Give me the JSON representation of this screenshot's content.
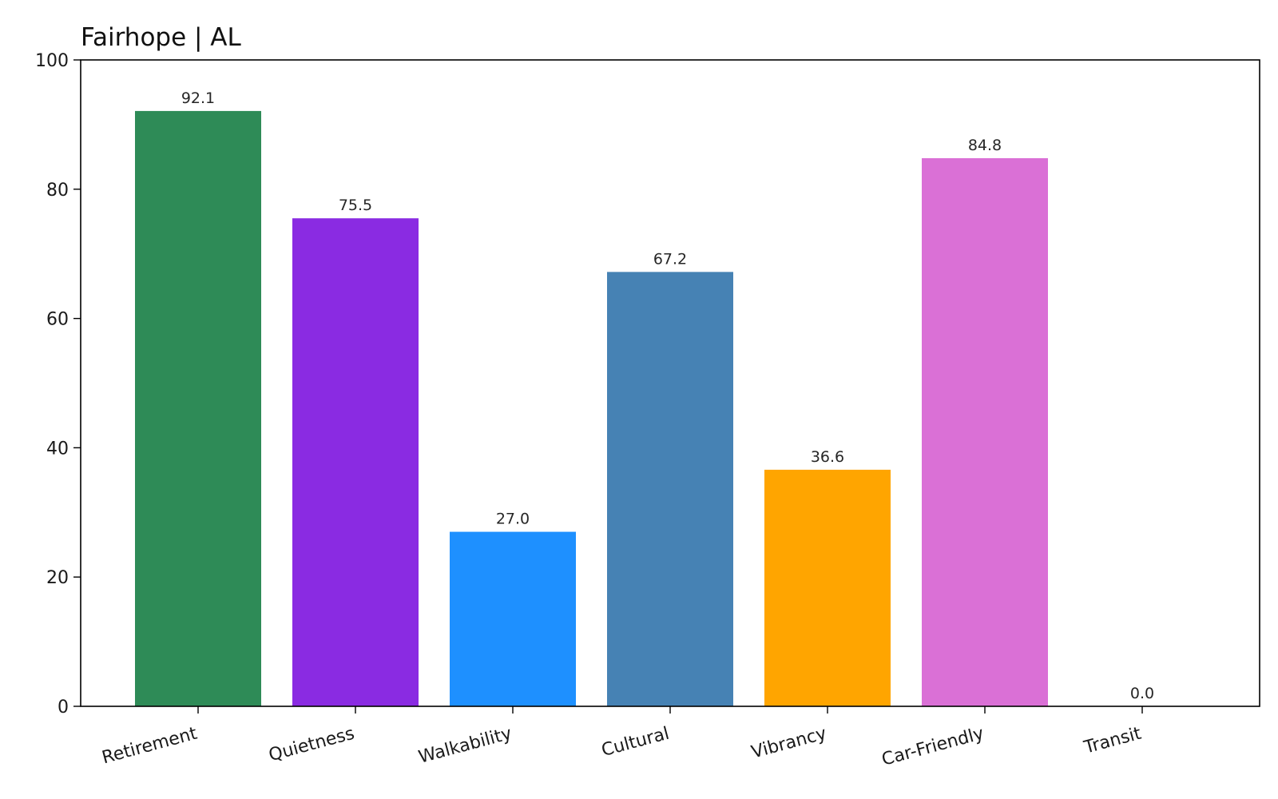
{
  "chart_data": {
    "type": "bar",
    "title": "Fairhope | AL",
    "xlabel": "",
    "ylabel": "",
    "categories": [
      "Retirement",
      "Quietness",
      "Walkability",
      "Cultural",
      "Vibrancy",
      "Car-Friendly",
      "Transit"
    ],
    "values": [
      92.1,
      75.5,
      27.0,
      67.2,
      36.6,
      84.8,
      0.0
    ],
    "value_labels": [
      "92.1",
      "75.5",
      "27.0",
      "67.2",
      "36.6",
      "84.8",
      "0.0"
    ],
    "colors": [
      "#2e8b57",
      "#8a2be2",
      "#1e90ff",
      "#4682b4",
      "#ffa500",
      "#da70d6",
      "#800000"
    ],
    "ylim": [
      0,
      100
    ],
    "yticks": [
      0,
      20,
      40,
      60,
      80,
      100
    ],
    "grid": false,
    "legend": "none"
  }
}
